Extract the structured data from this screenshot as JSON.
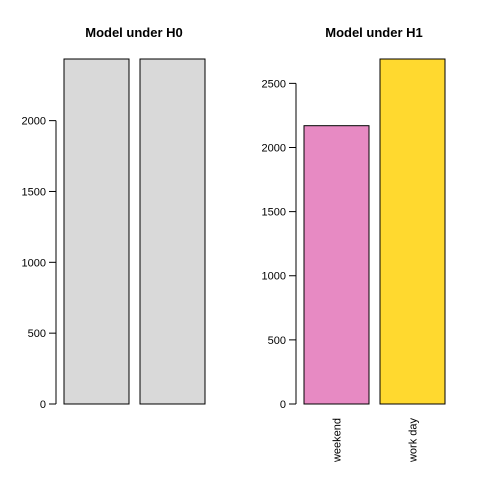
{
  "chart_data": [
    {
      "type": "bar",
      "title": "Model under H0",
      "categories": [
        "",
        ""
      ],
      "values": [
        2435,
        2435
      ],
      "colors": [
        "#d9d9d9",
        "#d9d9d9"
      ],
      "ylim": [
        0,
        2435
      ],
      "yticks": [
        0,
        500,
        1000,
        1500,
        2000
      ],
      "grid": false
    },
    {
      "type": "bar",
      "title": "Model under H1",
      "categories": [
        "weekend",
        "work day"
      ],
      "values": [
        2170,
        2690
      ],
      "colors": [
        "#e78ac3",
        "#ffd92f"
      ],
      "ylim": [
        0,
        2690
      ],
      "yticks": [
        0,
        500,
        1000,
        1500,
        2000,
        2500
      ],
      "grid": false
    }
  ]
}
